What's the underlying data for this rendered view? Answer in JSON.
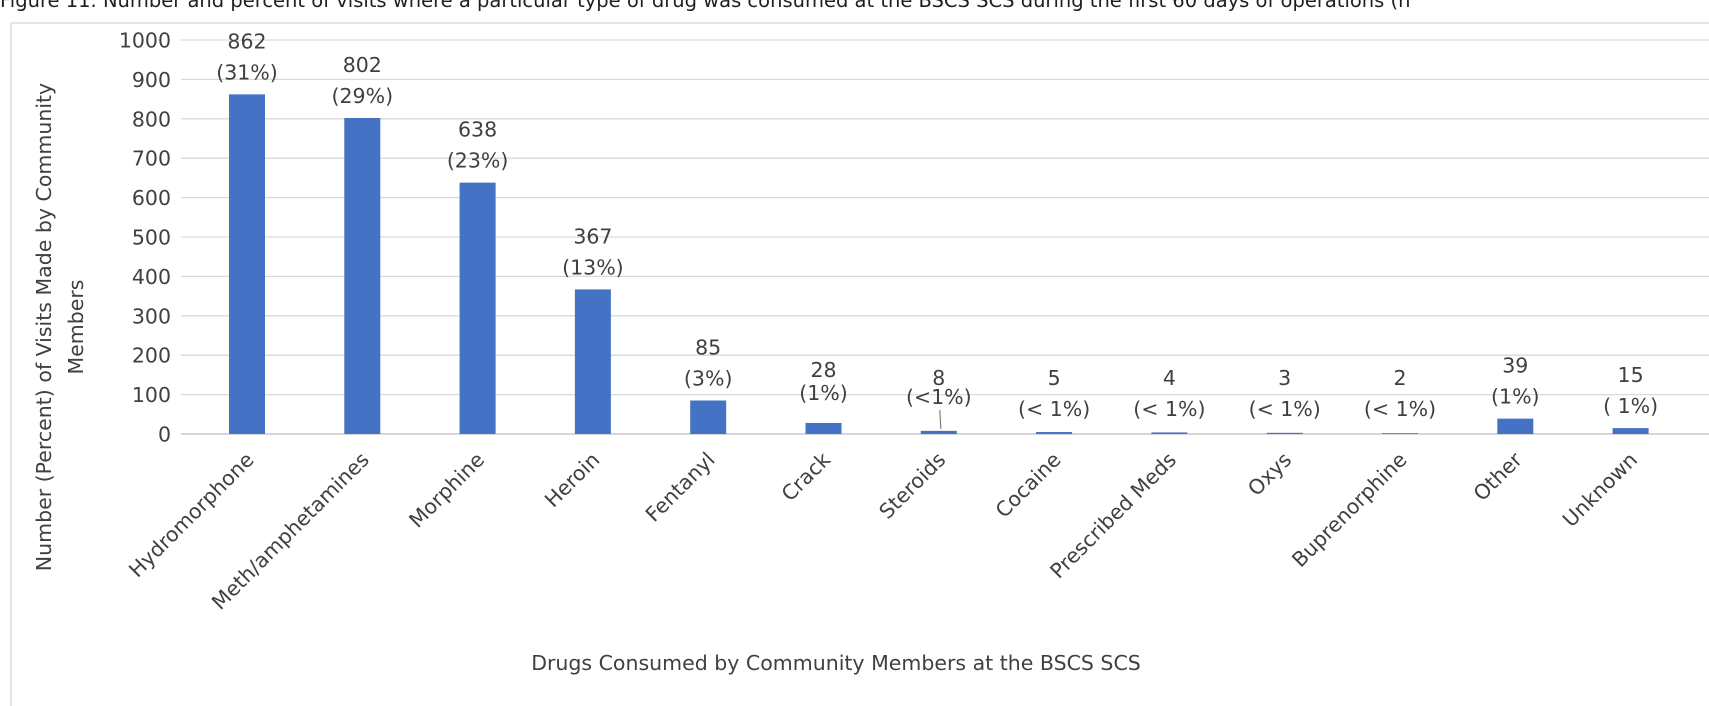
{
  "figure": {
    "caption": "Figure 11. Number and percent of visits where a particular type of drug was consumed at the BSCS SCS during the first 60 days of operations (n"
  },
  "chart_data": {
    "type": "bar",
    "title": "",
    "xlabel": "Drugs Consumed by Community Members at the BSCS SCS",
    "ylabel_lines": [
      "Number (Percent) of Visits Made by Community",
      "Members"
    ],
    "ylim": [
      0,
      1000
    ],
    "yticks": [
      "0",
      "100",
      "200",
      "300",
      "400",
      "500",
      "600",
      "700",
      "800",
      "900",
      "1000"
    ],
    "grid": true,
    "legend": "none",
    "bar_color": "#4472c4",
    "categories": [
      "Hydromorphone",
      "Meth/amphetamines",
      "Morphine",
      "Heroin",
      "Fentanyl",
      "Crack",
      "Steroids",
      "Cocaine",
      "Prescribed Meds",
      "Oxys",
      "Buprenorphine",
      "Other",
      "Unknown"
    ],
    "values": [
      862,
      802,
      638,
      367,
      85,
      28,
      8,
      5,
      4,
      3,
      2,
      39,
      15
    ],
    "data_labels": [
      [
        "862",
        "(31%)"
      ],
      [
        "802",
        "(29%)"
      ],
      [
        "638",
        "(23%)"
      ],
      [
        "367",
        "(13%)"
      ],
      [
        "85",
        "(3%)"
      ],
      [
        "28",
        "(1%)"
      ],
      [
        "8",
        "(<1%)"
      ],
      [
        "5",
        "(< 1%)"
      ],
      [
        "4",
        "(< 1%)"
      ],
      [
        "3",
        "(< 1%)"
      ],
      [
        "2",
        "(< 1%)"
      ],
      [
        "39",
        "(1%)"
      ],
      [
        "15",
        "( 1%)"
      ]
    ]
  }
}
